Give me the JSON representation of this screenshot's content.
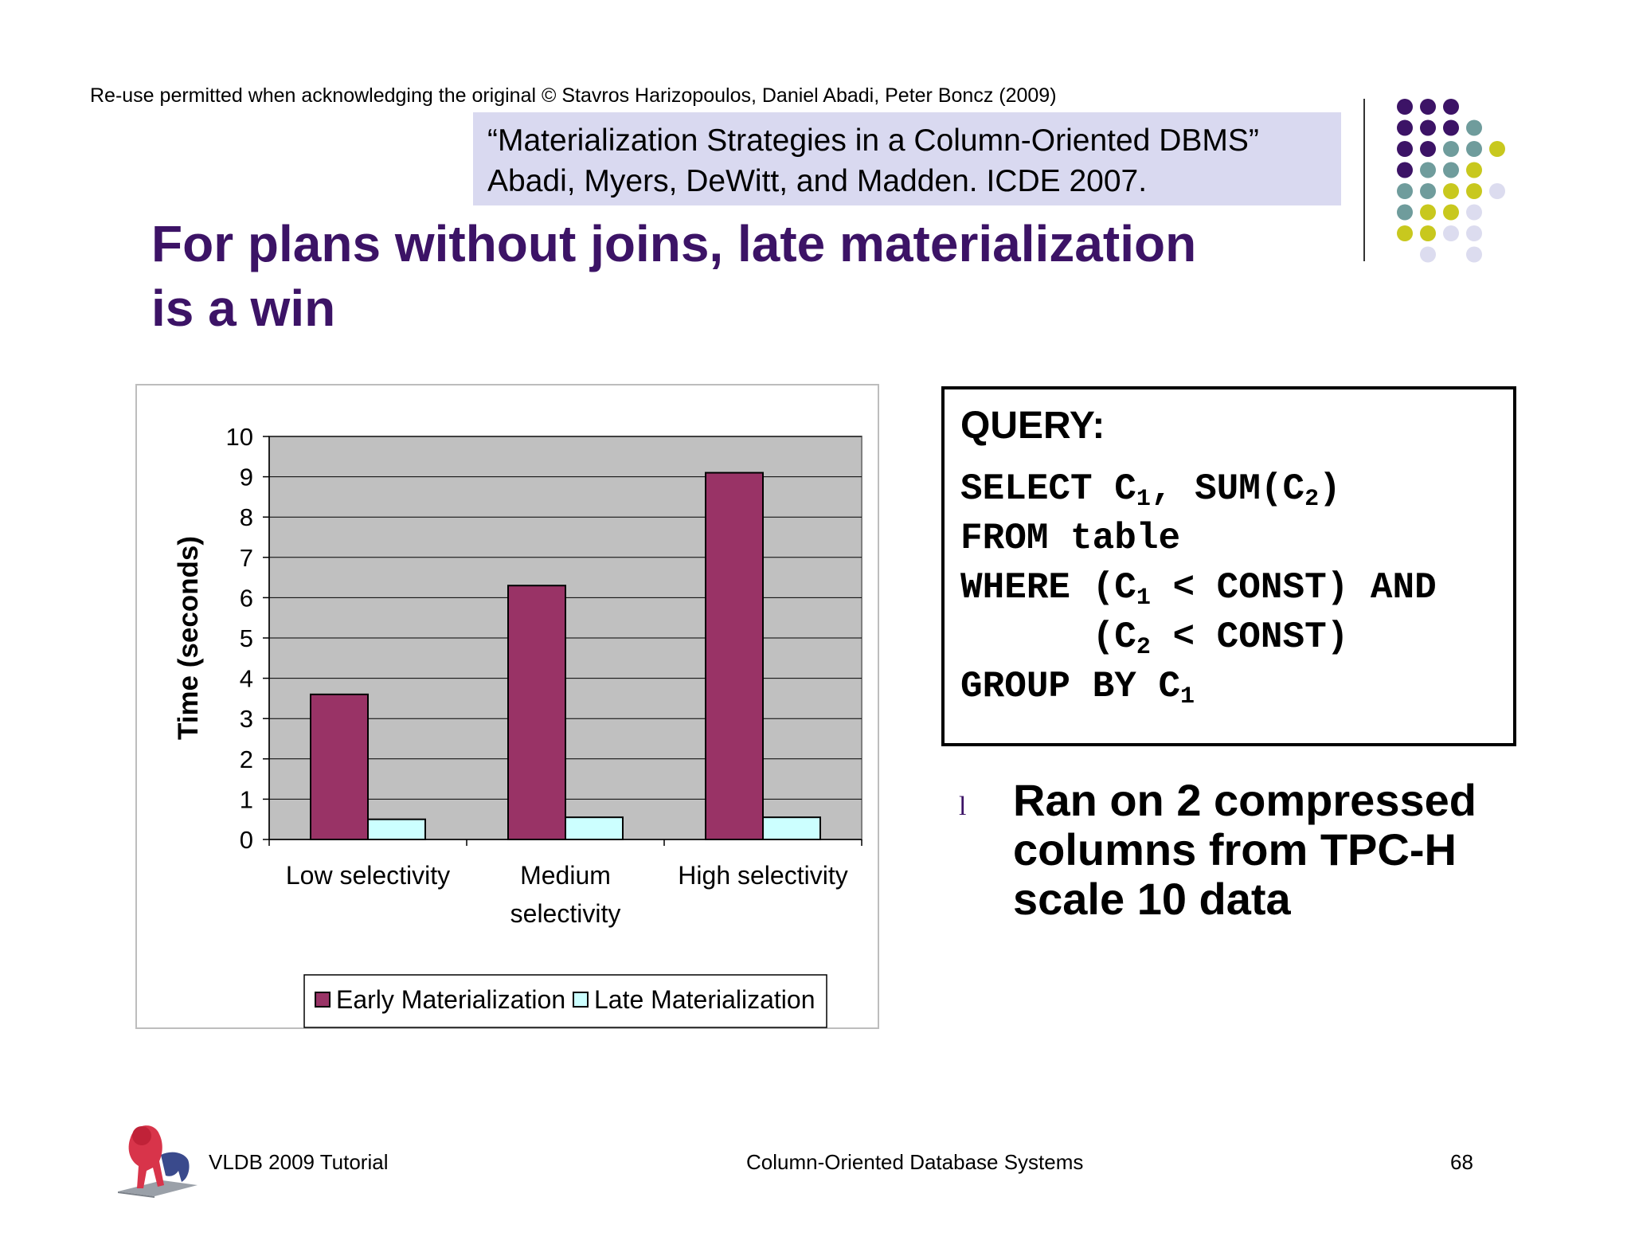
{
  "header": {
    "copyright": "Re-use permitted when acknowledging the original © Stavros Harizopoulos, Daniel Abadi, Peter Boncz (2009)",
    "citation_line1": "“Materialization Strategies in a Column-Oriented DBMS”",
    "citation_line2": "Abadi, Myers, DeWitt, and Madden. ICDE 2007."
  },
  "slide": {
    "title_line1": "For plans without joins, late materialization",
    "title_line2": "is a win"
  },
  "colors": {
    "title": "#3c1366",
    "early": "#993366",
    "late": "#ccffff",
    "plot_bg": "#c0c0c0",
    "citation_bg": "#d9d9f0",
    "dot_purple": "#3c1366",
    "dot_teal": "#6f9c9c",
    "dot_yellow": "#c8c81e",
    "dot_lavender": "#dcdcef"
  },
  "chart_data": {
    "type": "bar",
    "title": "",
    "xlabel": "",
    "ylabel": "Time (seconds)",
    "ylim": [
      0,
      10
    ],
    "yticks": [
      "0",
      "1",
      "2",
      "3",
      "4",
      "5",
      "6",
      "7",
      "8",
      "9",
      "10"
    ],
    "categories": [
      [
        "Low  selectivity"
      ],
      [
        "Medium",
        "selectivity"
      ],
      [
        "High selectivity"
      ]
    ],
    "series": [
      {
        "name": "Early Materialization",
        "values": [
          3.6,
          6.3,
          9.1
        ]
      },
      {
        "name": "Late Materialization",
        "values": [
          0.5,
          0.55,
          0.55
        ]
      }
    ],
    "grid": true,
    "legend": "bottom"
  },
  "query": {
    "heading": "QUERY:",
    "line1_a": "SELECT C",
    "line1_sub1": "1",
    "line1_b": ", SUM(C",
    "line1_sub2": "2",
    "line1_c": ")",
    "line2": "FROM table",
    "line3_a": "WHERE (C",
    "line3_sub": "1",
    "line3_b": " < CONST) AND",
    "line4_a": "      (C",
    "line4_sub": "2",
    "line4_b": " < CONST)",
    "line5_a": "GROUP BY C",
    "line5_sub": "1"
  },
  "bullet": {
    "marker": "l",
    "text": "Ran on 2 compressed columns from TPC-H scale 10 data"
  },
  "footer": {
    "left": "VLDB 2009 Tutorial",
    "center": "Column-Oriented Database Systems",
    "page": "68"
  },
  "decoration": {
    "logo_icon": "lion-statue-icon",
    "dots_icon": "dot-grid-decoration"
  }
}
